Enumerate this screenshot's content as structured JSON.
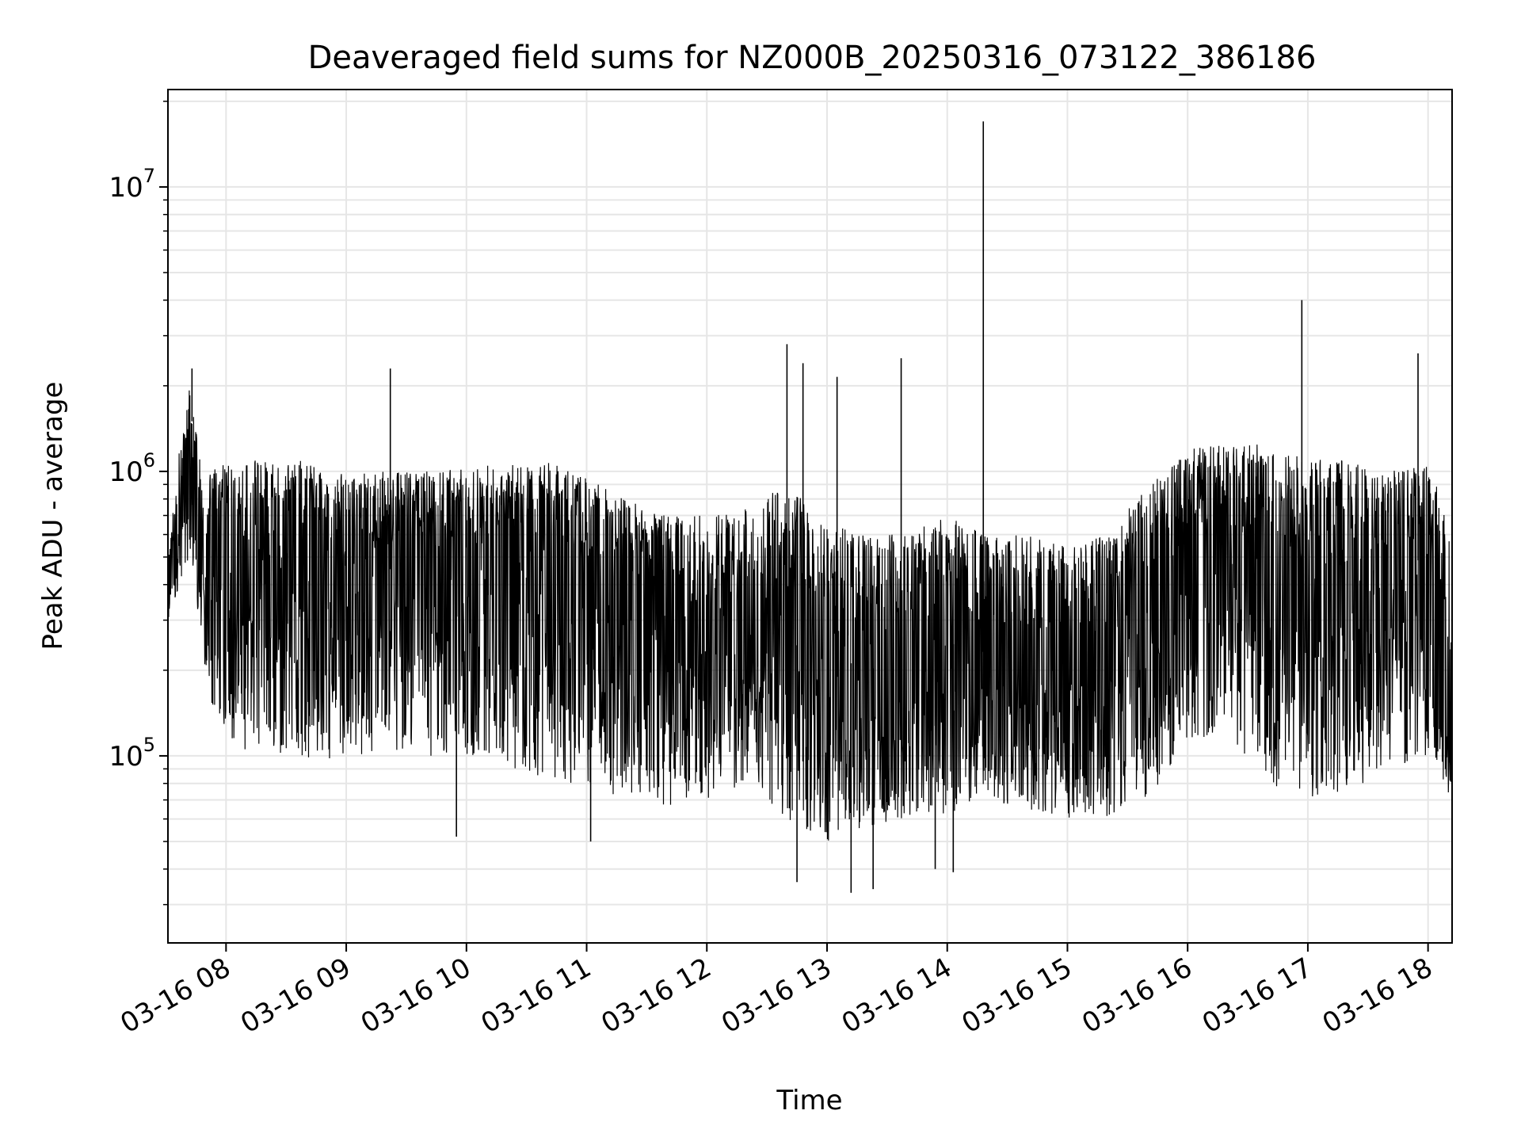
{
  "chart_data": {
    "type": "line",
    "title": "Deaveraged field sums for NZ000B_20250316_073122_386186",
    "xlabel": "Time",
    "ylabel": "Peak ADU - average",
    "y_scale": "log",
    "ylim": [
      22000,
      22000000
    ],
    "xlim": [
      "2025-03-16 07:31",
      "2025-03-16 18:12"
    ],
    "grid": true,
    "line_color": "#000000",
    "x_ticks": [
      "03-16 08",
      "03-16 09",
      "03-16 10",
      "03-16 11",
      "03-16 12",
      "03-16 13",
      "03-16 14",
      "03-16 15",
      "03-16 16",
      "03-16 17",
      "03-16 18"
    ],
    "y_ticks": [
      {
        "base": "10",
        "exp": "5"
      },
      {
        "base": "10",
        "exp": "6"
      },
      {
        "base": "10",
        "exp": "7"
      }
    ],
    "series": [
      {
        "time": [
          "2025-03-16 07:31",
          "2025-03-16 07:37",
          "2025-03-16 07:43",
          "2025-03-16 07:45",
          "2025-03-16 07:48",
          "2025-03-16 07:52",
          "2025-03-16 07:58",
          "2025-03-16 08:05",
          "2025-03-16 08:15",
          "2025-03-16 08:25",
          "2025-03-16 08:40",
          "2025-03-16 08:50",
          "2025-03-16 09:00",
          "2025-03-16 09:20",
          "2025-03-16 09:40",
          "2025-03-16 10:00",
          "2025-03-16 10:20",
          "2025-03-16 10:40",
          "2025-03-16 11:00",
          "2025-03-16 11:20",
          "2025-03-16 11:40",
          "2025-03-16 12:00",
          "2025-03-16 12:20",
          "2025-03-16 12:40",
          "2025-03-16 13:00",
          "2025-03-16 13:20",
          "2025-03-16 13:40",
          "2025-03-16 14:00",
          "2025-03-16 14:20",
          "2025-03-16 14:40",
          "2025-03-16 15:00",
          "2025-03-16 15:20",
          "2025-03-16 15:40",
          "2025-03-16 16:00",
          "2025-03-16 16:20",
          "2025-03-16 16:40",
          "2025-03-16 17:00",
          "2025-03-16 17:20",
          "2025-03-16 17:40",
          "2025-03-16 18:00",
          "2025-03-16 18:12"
        ],
        "median": [
          400000,
          600000,
          1500000,
          700000,
          550000,
          500000,
          550000,
          500000,
          450000,
          450000,
          450000,
          420000,
          400000,
          450000,
          480000,
          500000,
          500000,
          500000,
          450000,
          380000,
          300000,
          250000,
          250000,
          250000,
          230000,
          200000,
          220000,
          250000,
          230000,
          220000,
          200000,
          220000,
          300000,
          500000,
          550000,
          450000,
          350000,
          400000,
          450000,
          500000,
          100000
        ],
        "upper": [
          500000,
          1300000,
          2200000,
          1400000,
          1000000,
          1000000,
          1100000,
          1000000,
          1100000,
          1050000,
          1100000,
          950000,
          1000000,
          1000000,
          1000000,
          1050000,
          1050000,
          1100000,
          950000,
          800000,
          700000,
          700000,
          800000,
          900000,
          650000,
          600000,
          600000,
          700000,
          600000,
          600000,
          550000,
          600000,
          900000,
          1200000,
          1250000,
          1250000,
          1100000,
          1100000,
          1000000,
          1100000,
          600000
        ],
        "lower": [
          300000,
          400000,
          500000,
          300000,
          250000,
          150000,
          120000,
          100000,
          100000,
          100000,
          100000,
          90000,
          100000,
          100000,
          100000,
          100000,
          90000,
          80000,
          80000,
          70000,
          65000,
          70000,
          80000,
          60000,
          50000,
          55000,
          60000,
          60000,
          70000,
          65000,
          60000,
          60000,
          70000,
          110000,
          120000,
          80000,
          70000,
          70000,
          90000,
          100000,
          70000
        ],
        "spikes": [
          {
            "time": "2025-03-16 07:43",
            "value": 2300000
          },
          {
            "time": "2025-03-16 09:22",
            "value": 2300000
          },
          {
            "time": "2025-03-16 12:40",
            "value": 2800000
          },
          {
            "time": "2025-03-16 12:48",
            "value": 2400000
          },
          {
            "time": "2025-03-16 13:05",
            "value": 2150000
          },
          {
            "time": "2025-03-16 13:37",
            "value": 2500000
          },
          {
            "time": "2025-03-16 14:18",
            "value": 17000000
          },
          {
            "time": "2025-03-16 16:57",
            "value": 4000000
          },
          {
            "time": "2025-03-16 17:55",
            "value": 2600000
          },
          {
            "time": "2025-03-16 12:45",
            "value": 36000
          },
          {
            "time": "2025-03-16 13:12",
            "value": 33000
          },
          {
            "time": "2025-03-16 13:23",
            "value": 34000
          },
          {
            "time": "2025-03-16 13:54",
            "value": 40000
          },
          {
            "time": "2025-03-16 14:03",
            "value": 39000
          },
          {
            "time": "2025-03-16 09:55",
            "value": 52000
          },
          {
            "time": "2025-03-16 11:02",
            "value": 50000
          }
        ]
      }
    ]
  }
}
